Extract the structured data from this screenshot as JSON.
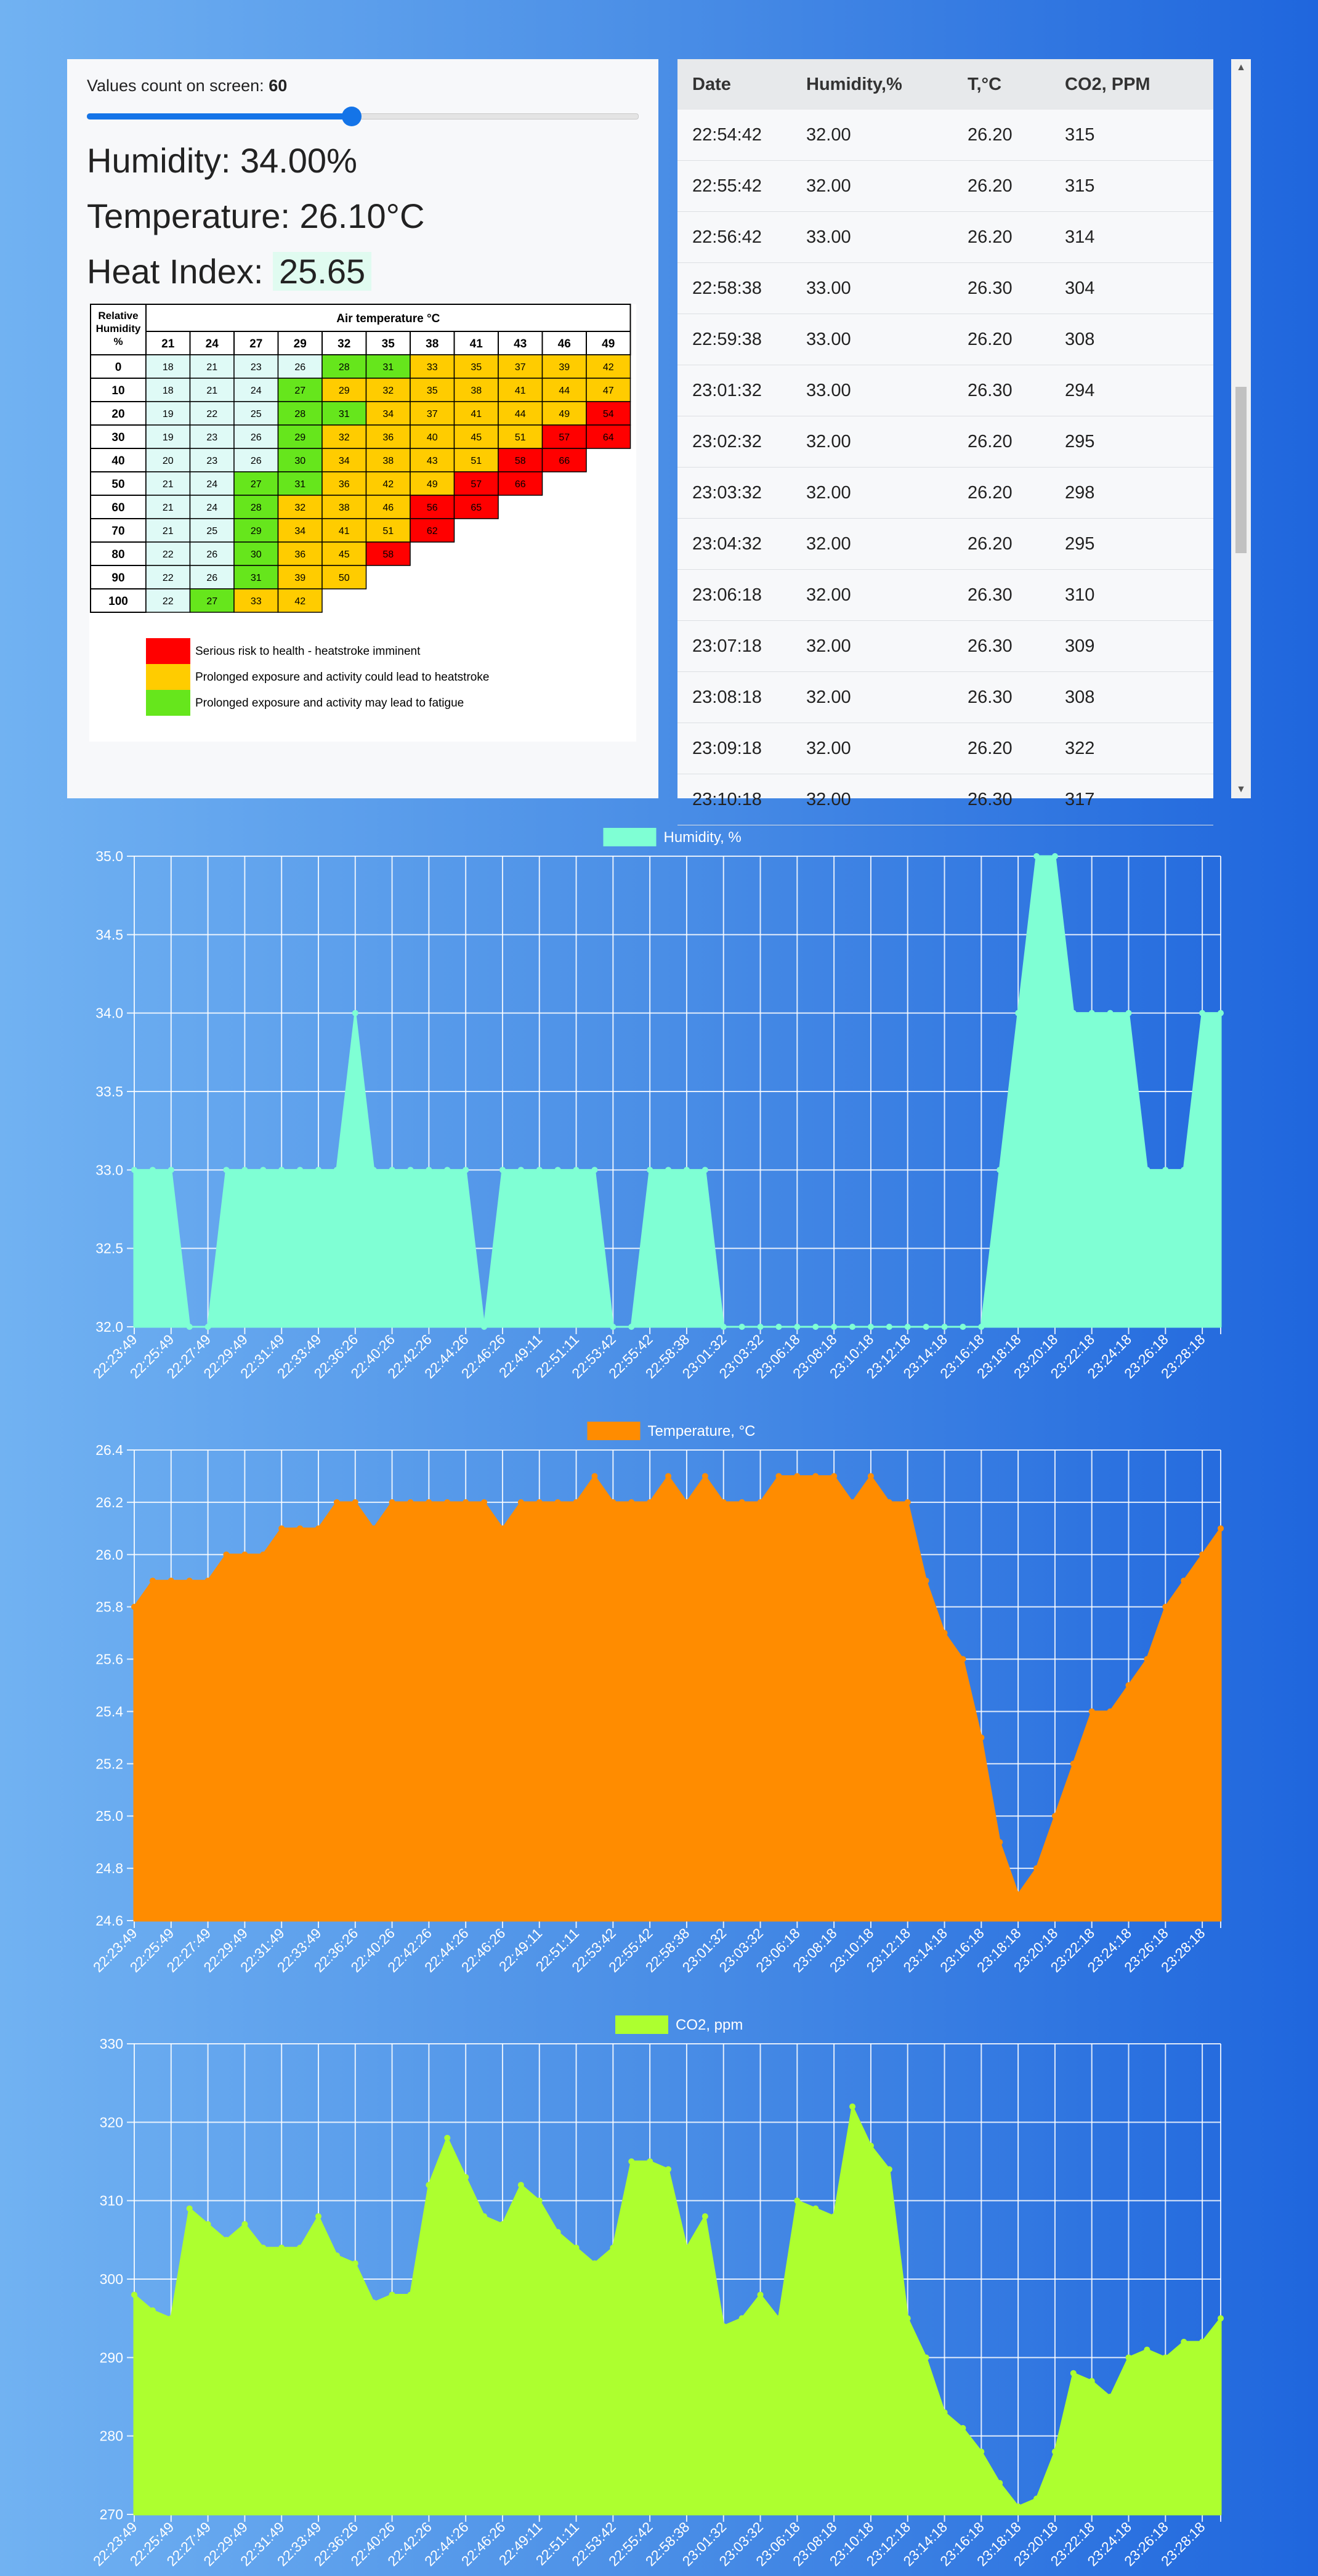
{
  "controls": {
    "count_label": "Values count on screen:",
    "count_value": "60",
    "slider_fraction": 0.48
  },
  "readings": {
    "humidity_text": "Humidity: 34.00%",
    "temperature_text": "Temperature: 26.10°C",
    "heat_index_label": "Heat Index:",
    "heat_index_value": "25.65"
  },
  "heat_index_table": {
    "rh_header": [
      "Relative",
      "Humidity",
      "%"
    ],
    "temp_header": "Air temperature °C",
    "temps": [
      "21",
      "24",
      "27",
      "29",
      "32",
      "35",
      "38",
      "41",
      "43",
      "46",
      "49"
    ],
    "rows": [
      {
        "rh": "0",
        "v": [
          "18",
          "21",
          "23",
          "26",
          "28",
          "31",
          "33",
          "35",
          "37",
          "39",
          "42"
        ],
        "c": [
          "C",
          "C",
          "C",
          "C",
          "G",
          "G",
          "Y",
          "Y",
          "Y",
          "Y",
          "Y"
        ]
      },
      {
        "rh": "10",
        "v": [
          "18",
          "21",
          "24",
          "27",
          "29",
          "32",
          "35",
          "38",
          "41",
          "44",
          "47"
        ],
        "c": [
          "C",
          "C",
          "C",
          "G",
          "Y",
          "Y",
          "Y",
          "Y",
          "Y",
          "Y",
          "Y"
        ]
      },
      {
        "rh": "20",
        "v": [
          "19",
          "22",
          "25",
          "28",
          "31",
          "34",
          "37",
          "41",
          "44",
          "49",
          "54"
        ],
        "c": [
          "C",
          "C",
          "C",
          "G",
          "G",
          "Y",
          "Y",
          "Y",
          "Y",
          "Y",
          "R"
        ]
      },
      {
        "rh": "30",
        "v": [
          "19",
          "23",
          "26",
          "29",
          "32",
          "36",
          "40",
          "45",
          "51",
          "57",
          "64"
        ],
        "c": [
          "C",
          "C",
          "C",
          "G",
          "Y",
          "Y",
          "Y",
          "Y",
          "Y",
          "R",
          "R"
        ]
      },
      {
        "rh": "40",
        "v": [
          "20",
          "23",
          "26",
          "30",
          "34",
          "38",
          "43",
          "51",
          "58",
          "66"
        ],
        "c": [
          "C",
          "C",
          "C",
          "G",
          "Y",
          "Y",
          "Y",
          "Y",
          "R",
          "R"
        ]
      },
      {
        "rh": "50",
        "v": [
          "21",
          "24",
          "27",
          "31",
          "36",
          "42",
          "49",
          "57",
          "66"
        ],
        "c": [
          "C",
          "C",
          "G",
          "G",
          "Y",
          "Y",
          "Y",
          "R",
          "R"
        ]
      },
      {
        "rh": "60",
        "v": [
          "21",
          "24",
          "28",
          "32",
          "38",
          "46",
          "56",
          "65"
        ],
        "c": [
          "C",
          "C",
          "G",
          "Y",
          "Y",
          "Y",
          "R",
          "R"
        ]
      },
      {
        "rh": "70",
        "v": [
          "21",
          "25",
          "29",
          "34",
          "41",
          "51",
          "62"
        ],
        "c": [
          "C",
          "C",
          "G",
          "Y",
          "Y",
          "Y",
          "R"
        ]
      },
      {
        "rh": "80",
        "v": [
          "22",
          "26",
          "30",
          "36",
          "45",
          "58"
        ],
        "c": [
          "C",
          "C",
          "G",
          "Y",
          "Y",
          "R"
        ]
      },
      {
        "rh": "90",
        "v": [
          "22",
          "26",
          "31",
          "39",
          "50"
        ],
        "c": [
          "C",
          "C",
          "G",
          "Y",
          "Y"
        ]
      },
      {
        "rh": "100",
        "v": [
          "22",
          "27",
          "33",
          "42"
        ],
        "c": [
          "C",
          "G",
          "Y",
          "Y"
        ]
      }
    ],
    "colors": {
      "C": "#dffaf6",
      "G": "#66e61c",
      "Y": "#ffcc00",
      "R": "#ff0000"
    },
    "legend": [
      {
        "color": "#ff0000",
        "text": "Serious risk to health - heatstroke imminent"
      },
      {
        "color": "#ffcc00",
        "text": "Prolonged exposure and activity could lead to heatstroke"
      },
      {
        "color": "#66e61c",
        "text": "Prolonged exposure and activity may lead to fatigue"
      }
    ]
  },
  "table": {
    "headers": [
      "Date",
      "Humidity,%",
      "T,°C",
      "CO2, PPM"
    ],
    "rows": [
      [
        "22:54:42",
        "32.00",
        "26.20",
        "315"
      ],
      [
        "22:55:42",
        "32.00",
        "26.20",
        "315"
      ],
      [
        "22:56:42",
        "33.00",
        "26.20",
        "314"
      ],
      [
        "22:58:38",
        "33.00",
        "26.30",
        "304"
      ],
      [
        "22:59:38",
        "33.00",
        "26.20",
        "308"
      ],
      [
        "23:01:32",
        "33.00",
        "26.30",
        "294"
      ],
      [
        "23:02:32",
        "32.00",
        "26.20",
        "295"
      ],
      [
        "23:03:32",
        "32.00",
        "26.20",
        "298"
      ],
      [
        "23:04:32",
        "32.00",
        "26.20",
        "295"
      ],
      [
        "23:06:18",
        "32.00",
        "26.30",
        "310"
      ],
      [
        "23:07:18",
        "32.00",
        "26.30",
        "309"
      ],
      [
        "23:08:18",
        "32.00",
        "26.30",
        "308"
      ],
      [
        "23:09:18",
        "32.00",
        "26.20",
        "322"
      ],
      [
        "23:10:18",
        "32.00",
        "26.30",
        "317"
      ]
    ]
  },
  "chart_data": [
    {
      "type": "area",
      "legend": "Humidity, %",
      "color": "#7fffd4",
      "ylim": [
        32.0,
        35.0
      ],
      "yticks": [
        "32.0",
        "32.5",
        "33.0",
        "33.5",
        "34.0",
        "34.5",
        "35.0"
      ],
      "x_labels": [
        "22:23:49",
        "22:25:49",
        "22:27:49",
        "22:29:49",
        "22:31:49",
        "22:33:49",
        "22:36:26",
        "22:40:26",
        "22:42:26",
        "22:44:26",
        "22:46:26",
        "22:49:11",
        "22:51:11",
        "22:53:42",
        "22:55:42",
        "22:58:38",
        "23:01:32",
        "23:03:32",
        "23:06:18",
        "23:08:18",
        "23:10:18",
        "23:12:18",
        "23:14:18",
        "23:16:18",
        "23:18:18",
        "23:20:18",
        "23:22:18",
        "23:24:18",
        "23:26:18",
        "23:28:18"
      ],
      "values": [
        33,
        33,
        33,
        32,
        32,
        33,
        33,
        33,
        33,
        33,
        33,
        33,
        34,
        33,
        33,
        33,
        33,
        33,
        33,
        32,
        33,
        33,
        33,
        33,
        33,
        33,
        32,
        32,
        33,
        33,
        33,
        33,
        32,
        32,
        32,
        32,
        32,
        32,
        32,
        32,
        32,
        32,
        32,
        32,
        32,
        32,
        32,
        33,
        34,
        35,
        35,
        34,
        34,
        34,
        34,
        33,
        33,
        33,
        34,
        34
      ]
    },
    {
      "type": "area",
      "legend": "Temperature, °C",
      "color": "#ff8c00",
      "ylim": [
        24.6,
        26.4
      ],
      "yticks": [
        "24.6",
        "24.8",
        "25.0",
        "25.2",
        "25.4",
        "25.6",
        "25.8",
        "26.0",
        "26.2",
        "26.4"
      ],
      "x_labels": [
        "22:23:49",
        "22:25:49",
        "22:27:49",
        "22:29:49",
        "22:31:49",
        "22:33:49",
        "22:36:26",
        "22:40:26",
        "22:42:26",
        "22:44:26",
        "22:46:26",
        "22:49:11",
        "22:51:11",
        "22:53:42",
        "22:55:42",
        "22:58:38",
        "23:01:32",
        "23:03:32",
        "23:06:18",
        "23:08:18",
        "23:10:18",
        "23:12:18",
        "23:14:18",
        "23:16:18",
        "23:18:18",
        "23:20:18",
        "23:22:18",
        "23:24:18",
        "23:26:18",
        "23:28:18"
      ],
      "values": [
        25.8,
        25.9,
        25.9,
        25.9,
        25.9,
        26.0,
        26.0,
        26.0,
        26.1,
        26.1,
        26.1,
        26.2,
        26.2,
        26.1,
        26.2,
        26.2,
        26.2,
        26.2,
        26.2,
        26.2,
        26.1,
        26.2,
        26.2,
        26.2,
        26.2,
        26.3,
        26.2,
        26.2,
        26.2,
        26.3,
        26.2,
        26.3,
        26.2,
        26.2,
        26.2,
        26.3,
        26.3,
        26.3,
        26.3,
        26.2,
        26.3,
        26.2,
        26.2,
        25.9,
        25.7,
        25.6,
        25.3,
        24.9,
        24.7,
        24.8,
        25.0,
        25.2,
        25.4,
        25.4,
        25.5,
        25.6,
        25.8,
        25.9,
        26.0,
        26.1
      ]
    },
    {
      "type": "area",
      "legend": "CO2, ppm",
      "color": "#adff2f",
      "ylim": [
        270,
        330
      ],
      "yticks": [
        "270",
        "280",
        "290",
        "300",
        "310",
        "320",
        "330"
      ],
      "x_labels": [
        "22:23:49",
        "22:25:49",
        "22:27:49",
        "22:29:49",
        "22:31:49",
        "22:33:49",
        "22:36:26",
        "22:40:26",
        "22:42:26",
        "22:44:26",
        "22:46:26",
        "22:49:11",
        "22:51:11",
        "22:53:42",
        "22:55:42",
        "22:58:38",
        "23:01:32",
        "23:03:32",
        "23:06:18",
        "23:08:18",
        "23:10:18",
        "23:12:18",
        "23:14:18",
        "23:16:18",
        "23:18:18",
        "23:20:18",
        "23:22:18",
        "23:24:18",
        "23:26:18",
        "23:28:18"
      ],
      "values": [
        298,
        296,
        295,
        309,
        307,
        305,
        307,
        304,
        304,
        304,
        308,
        303,
        302,
        297,
        298,
        298,
        312,
        318,
        313,
        308,
        307,
        312,
        310,
        306,
        304,
        302,
        304,
        315,
        315,
        314,
        304,
        308,
        294,
        295,
        298,
        295,
        310,
        309,
        308,
        322,
        317,
        314,
        295,
        290,
        283,
        281,
        278,
        274,
        271,
        272,
        278,
        288,
        287,
        285,
        290,
        291,
        290,
        292,
        292,
        295
      ]
    }
  ]
}
